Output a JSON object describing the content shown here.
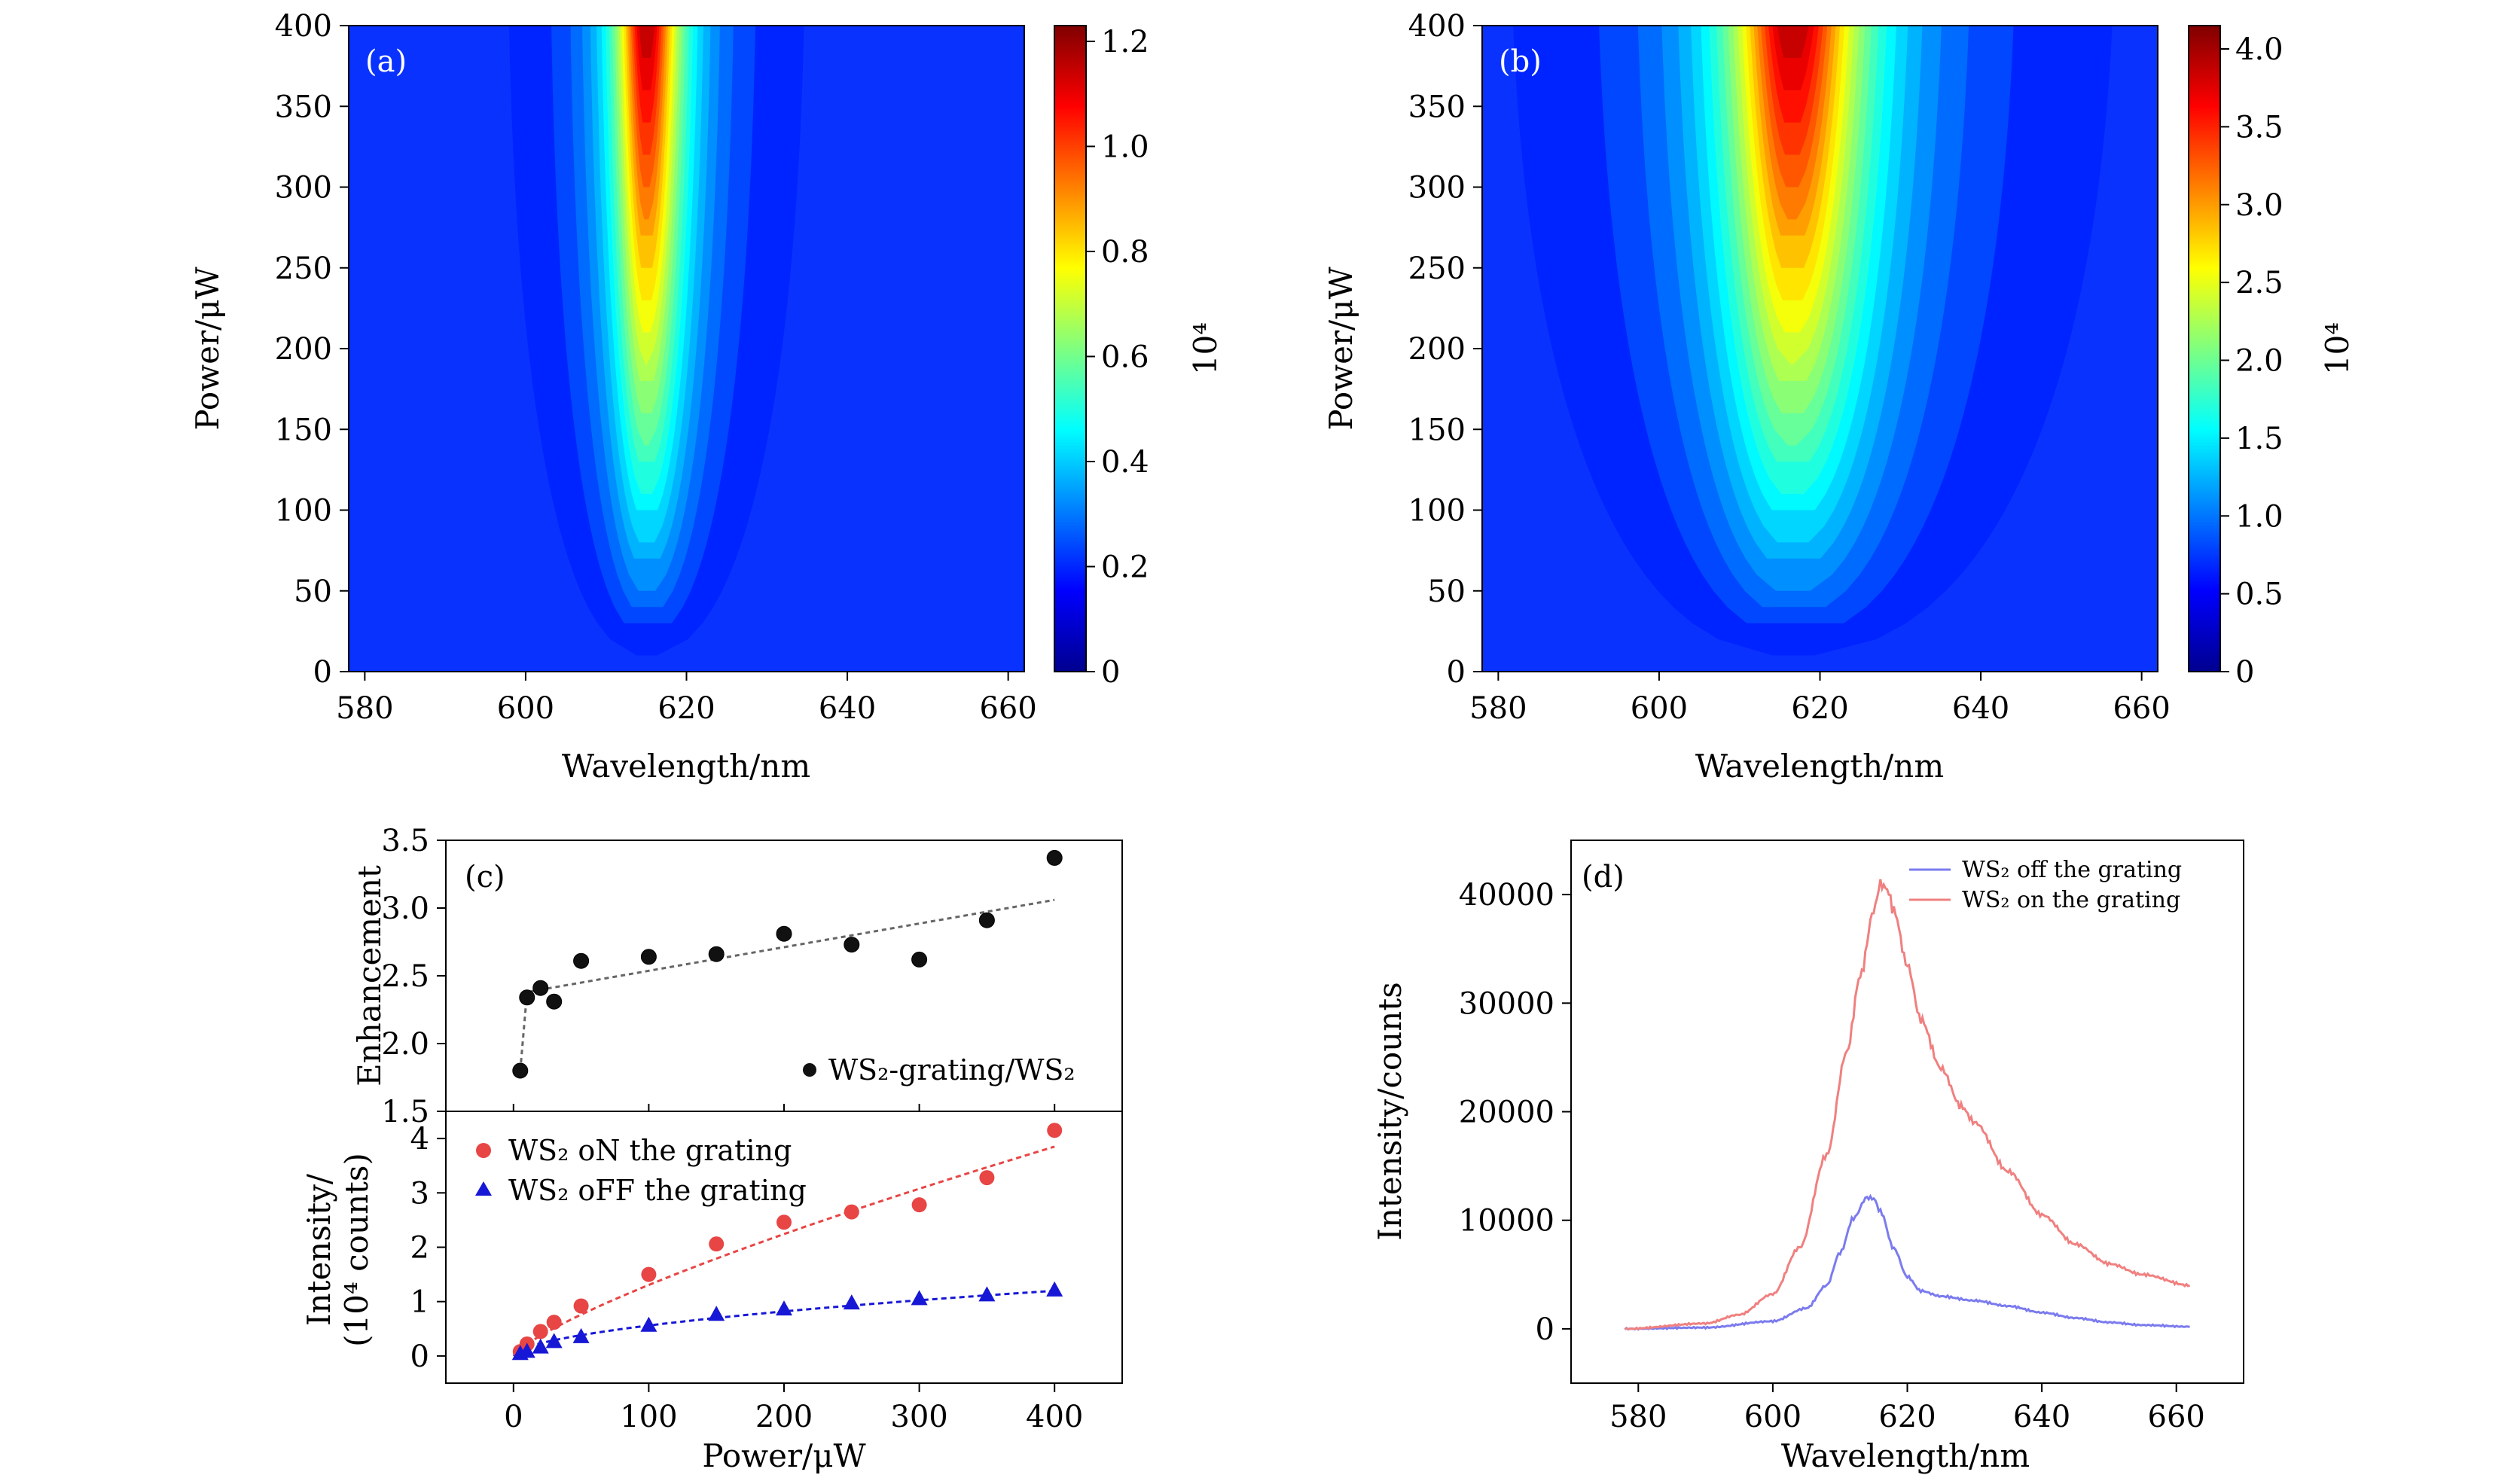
{
  "figure": {
    "panels": [
      "(a)",
      "(b)",
      "(c)",
      "(d)"
    ]
  },
  "chart_data": [
    {
      "id": "a",
      "type": "heatmap",
      "panel_label": "(a)",
      "xlabel": "Wavelength/nm",
      "ylabel": "Power/μW",
      "xlim": [
        578,
        662
      ],
      "ylim": [
        0,
        400
      ],
      "xticks": [
        580,
        600,
        620,
        640,
        660
      ],
      "yticks": [
        0,
        50,
        100,
        150,
        200,
        250,
        300,
        350,
        400
      ],
      "colorbar": {
        "label": "10⁴",
        "range": [
          0,
          1.23
        ],
        "ticks": [
          0,
          0.2,
          0.4,
          0.6,
          0.8,
          1.0,
          1.2
        ],
        "tick_labels": [
          "0",
          "0.2",
          "0.4",
          "0.6",
          "0.8",
          "1.0",
          "1.2"
        ],
        "colormap": "jet"
      },
      "peak_wavelength_nm": 615,
      "peak_width_nm": 3.2,
      "max_value": 1.23
    },
    {
      "id": "b",
      "type": "heatmap",
      "panel_label": "(b)",
      "xlabel": "Wavelength/nm",
      "ylabel": "Power/μW",
      "xlim": [
        578,
        662
      ],
      "ylim": [
        0,
        400
      ],
      "xticks": [
        580,
        600,
        620,
        640,
        660
      ],
      "yticks": [
        0,
        50,
        100,
        150,
        200,
        250,
        300,
        350,
        400
      ],
      "colorbar": {
        "label": "10⁴",
        "range": [
          0,
          4.15
        ],
        "ticks": [
          0,
          0.5,
          1.0,
          1.5,
          2.0,
          2.5,
          3.0,
          3.5,
          4.0
        ],
        "tick_labels": [
          "0",
          "0.5",
          "1.0",
          "1.5",
          "2.0",
          "2.5",
          "3.0",
          "3.5",
          "4.0"
        ],
        "colormap": "jet"
      },
      "peak_wavelength_nm": 616.5,
      "peak_width_nm": 6.5,
      "max_value": 4.15
    },
    {
      "id": "c-top",
      "type": "scatter",
      "panel_label": "(c)",
      "ylabel": "Enhancement",
      "xlim": [
        -50,
        450
      ],
      "ylim": [
        1.5,
        3.5
      ],
      "yticks": [
        1.5,
        2.0,
        2.5,
        3.0,
        3.5
      ],
      "ytick_labels": [
        "1.5",
        "2.0",
        "2.5",
        "3.0",
        "3.5"
      ],
      "series": [
        {
          "name": "WS₂-grating/WS₂",
          "x": [
            5,
            10,
            20,
            30,
            50,
            100,
            150,
            200,
            250,
            300,
            350,
            400
          ],
          "y": [
            1.8,
            2.34,
            2.41,
            2.31,
            2.61,
            2.64,
            2.66,
            2.81,
            2.73,
            2.62,
            2.91,
            3.37
          ],
          "color": "#000000"
        }
      ],
      "fit": {
        "x": [
          5,
          10,
          400
        ],
        "y": [
          1.8,
          2.38,
          3.06
        ],
        "color": "#666666"
      },
      "legend_position": "bottom-right"
    },
    {
      "id": "c-bottom",
      "type": "scatter",
      "xlabel": "Power/μW",
      "ylabel": [
        "Intensity/",
        "(10⁴ counts)"
      ],
      "xlim": [
        -50,
        450
      ],
      "ylim": [
        -0.5,
        4.5
      ],
      "xticks": [
        0,
        100,
        200,
        300,
        400
      ],
      "yticks": [
        0,
        1,
        2,
        3,
        4
      ],
      "series": [
        {
          "name": "WS₂ oN the grating",
          "marker": "circle",
          "color": "#e84545",
          "x": [
            5,
            10,
            20,
            30,
            50,
            100,
            150,
            200,
            250,
            300,
            350,
            400
          ],
          "y": [
            0.08,
            0.22,
            0.45,
            0.62,
            0.92,
            1.5,
            2.06,
            2.46,
            2.65,
            2.78,
            3.28,
            4.15
          ]
        },
        {
          "name": "WS₂ oFF the grating",
          "marker": "triangle",
          "color": "#1717d6",
          "x": [
            5,
            10,
            20,
            30,
            50,
            100,
            150,
            200,
            250,
            300,
            350,
            400
          ],
          "y": [
            0.05,
            0.09,
            0.17,
            0.27,
            0.36,
            0.57,
            0.77,
            0.87,
            0.98,
            1.06,
            1.13,
            1.22
          ]
        }
      ],
      "legend_position": "top-left"
    },
    {
      "id": "d",
      "type": "line",
      "panel_label": "(d)",
      "xlabel": "Wavelength/nm",
      "ylabel": "Intensity/counts",
      "xlim": [
        570,
        670
      ],
      "ylim": [
        -5000,
        45000
      ],
      "xticks": [
        580,
        600,
        620,
        640,
        660
      ],
      "yticks": [
        0,
        10000,
        20000,
        30000,
        40000
      ],
      "series": [
        {
          "name": "WS₂ off the grating",
          "color": "#7b7bef",
          "x": [
            578,
            590,
            600,
            605,
            608,
            610,
            612,
            614,
            615,
            616,
            618,
            620,
            622,
            625,
            630,
            635,
            640,
            645,
            650,
            655,
            662
          ],
          "y": [
            0,
            120,
            700,
            1900,
            4000,
            7000,
            10200,
            12100,
            12000,
            10800,
            7400,
            4800,
            3500,
            3000,
            2600,
            2100,
            1500,
            1000,
            600,
            350,
            200
          ]
        },
        {
          "name": "WS₂ on the grating",
          "color": "#f08080",
          "x": [
            578,
            590,
            595,
            600,
            604,
            608,
            611,
            613,
            615,
            616,
            617,
            618,
            620,
            622,
            625,
            628,
            630,
            635,
            640,
            645,
            650,
            655,
            662
          ],
          "y": [
            0,
            500,
            1300,
            3200,
            7500,
            16000,
            25500,
            32500,
            38500,
            41000,
            40500,
            38500,
            33500,
            28500,
            24000,
            20500,
            19000,
            14500,
            10500,
            7800,
            6000,
            5000,
            4000
          ]
        }
      ],
      "legend_position": "top-right"
    }
  ]
}
